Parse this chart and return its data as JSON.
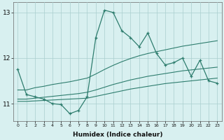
{
  "x": [
    0,
    1,
    2,
    3,
    4,
    5,
    6,
    7,
    8,
    9,
    10,
    11,
    12,
    13,
    14,
    15,
    16,
    17,
    18,
    19,
    20,
    21,
    22,
    23
  ],
  "main_y": [
    11.75,
    11.2,
    11.15,
    11.1,
    11.0,
    10.98,
    10.78,
    10.85,
    11.15,
    12.45,
    13.05,
    13.0,
    12.6,
    12.45,
    12.25,
    12.55,
    12.1,
    11.85,
    11.9,
    12.0,
    11.6,
    11.95,
    11.5,
    11.45
  ],
  "upper_x": [
    0,
    1,
    2,
    3,
    4,
    5,
    6,
    7,
    8,
    9,
    10,
    11,
    12,
    13,
    14,
    15,
    16,
    17,
    18,
    19,
    20,
    21,
    22,
    23
  ],
  "upper_y": [
    11.3,
    11.3,
    11.35,
    11.38,
    11.42,
    11.45,
    11.48,
    11.52,
    11.56,
    11.65,
    11.75,
    11.84,
    11.92,
    11.99,
    12.05,
    12.1,
    12.14,
    12.18,
    12.22,
    12.26,
    12.29,
    12.32,
    12.35,
    12.38
  ],
  "mid_x": [
    0,
    1,
    2,
    3,
    4,
    5,
    6,
    7,
    8,
    9,
    10,
    11,
    12,
    13,
    14,
    15,
    16,
    17,
    18,
    19,
    20,
    21,
    22,
    23
  ],
  "mid_y": [
    11.1,
    11.1,
    11.12,
    11.14,
    11.16,
    11.18,
    11.2,
    11.22,
    11.25,
    11.3,
    11.36,
    11.42,
    11.47,
    11.52,
    11.56,
    11.6,
    11.63,
    11.66,
    11.69,
    11.72,
    11.74,
    11.76,
    11.78,
    11.8
  ],
  "lower_x": [
    0,
    1,
    2,
    3,
    4,
    5,
    6,
    7,
    8,
    9,
    10,
    11,
    12,
    13,
    14,
    15,
    16,
    17,
    18,
    19,
    20,
    21,
    22,
    23
  ],
  "lower_y": [
    11.05,
    11.05,
    11.06,
    11.07,
    11.08,
    11.09,
    11.1,
    11.11,
    11.12,
    11.16,
    11.2,
    11.24,
    11.28,
    11.32,
    11.35,
    11.38,
    11.41,
    11.44,
    11.46,
    11.48,
    11.5,
    11.52,
    11.54,
    11.56
  ],
  "color": "#2e7d6e",
  "bg_color": "#d8f0f0",
  "grid_color": "#aacece",
  "xlabel": "Humidex (Indice chaleur)",
  "ylim_min": 10.62,
  "ylim_max": 13.22,
  "yticks": [
    11,
    12,
    13
  ],
  "xlim_min": -0.5,
  "xlim_max": 23.5,
  "xticks": [
    0,
    1,
    2,
    3,
    4,
    5,
    6,
    7,
    8,
    9,
    10,
    11,
    12,
    13,
    14,
    15,
    16,
    17,
    18,
    19,
    20,
    21,
    22,
    23
  ]
}
